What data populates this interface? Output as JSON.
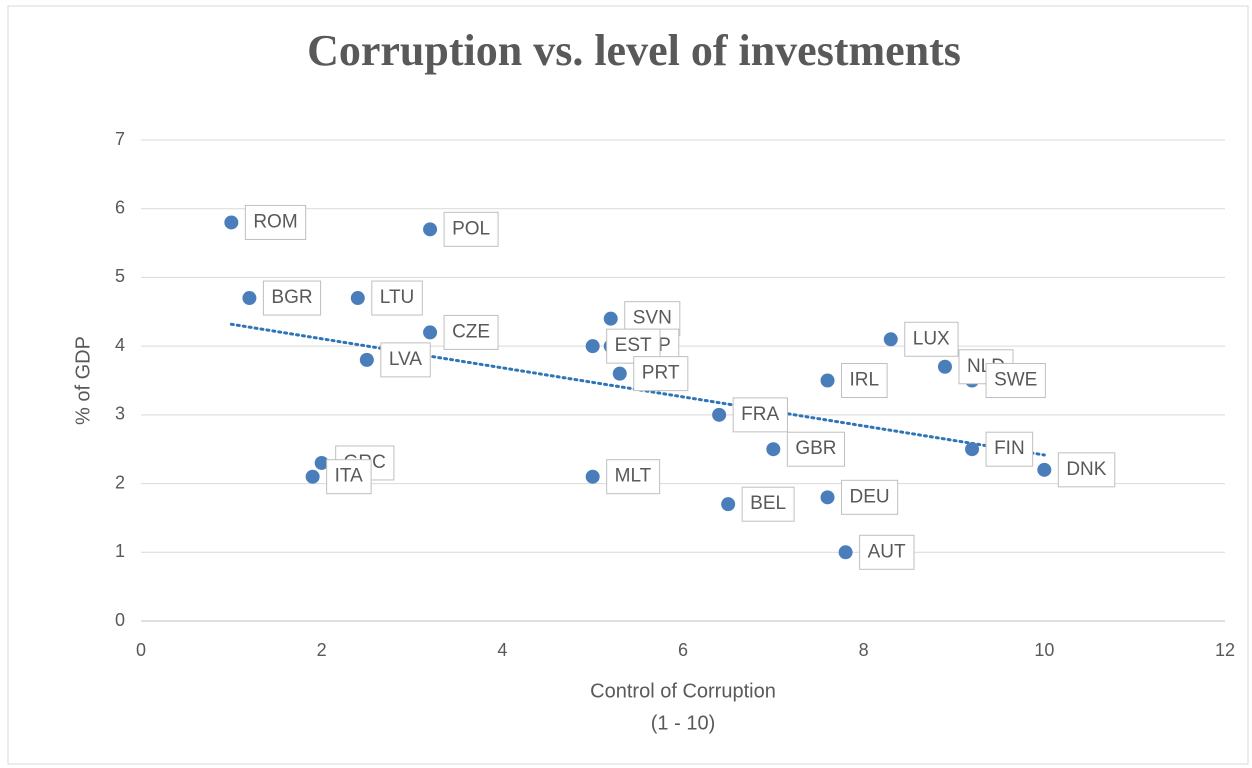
{
  "chart_data": {
    "type": "scatter",
    "title": "Corruption vs. level of investments",
    "xlabel": [
      "Control of Corruption",
      "(1 - 10)"
    ],
    "ylabel": "% of GDP",
    "labels": [
      "ROM",
      "POL",
      "BGR",
      "LTU",
      "CZE",
      "LVA",
      "GRC",
      "ITA",
      "SVN",
      "ESP",
      "EST",
      "PRT",
      "MLT",
      "FRA",
      "GBR",
      "BEL",
      "DEU",
      "AUT",
      "IRL",
      "LUX",
      "NLD",
      "SWE",
      "FIN",
      "DNK"
    ],
    "x": [
      1.0,
      3.2,
      1.2,
      2.4,
      3.2,
      2.5,
      2.0,
      1.9,
      5.2,
      5.2,
      5.0,
      5.3,
      5.0,
      6.4,
      7.0,
      6.5,
      7.6,
      7.8,
      7.6,
      8.3,
      8.9,
      9.2,
      9.2,
      10.0
    ],
    "values": [
      5.8,
      5.7,
      4.7,
      4.7,
      4.2,
      3.8,
      2.3,
      2.1,
      4.4,
      4.0,
      4.0,
      3.6,
      2.1,
      3.0,
      2.5,
      1.7,
      1.8,
      1.0,
      3.5,
      4.1,
      3.7,
      3.5,
      2.5,
      2.2
    ],
    "color": "#4a7ebb",
    "trendline": true,
    "trend_color": "#2e75b6",
    "xlim": [
      0,
      12
    ],
    "xticks": [
      0,
      2,
      4,
      6,
      8,
      10,
      12
    ],
    "ylim": [
      0,
      7
    ],
    "yticks": [
      0,
      1,
      2,
      3,
      4,
      5,
      6,
      7
    ],
    "grid": true
  }
}
